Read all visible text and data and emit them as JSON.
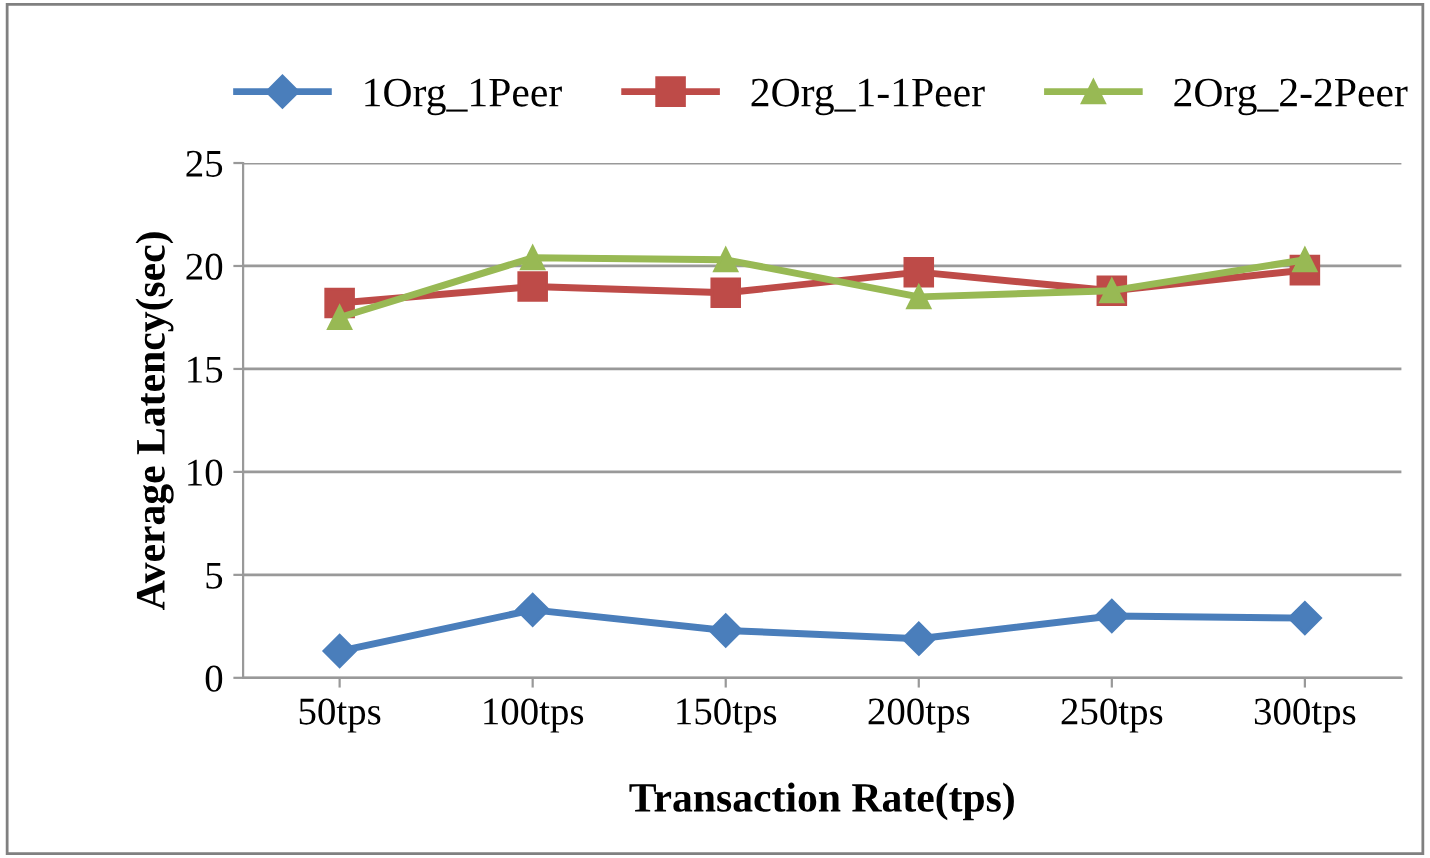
{
  "chart_data": {
    "type": "line",
    "xlabel": "Transaction Rate(tps)",
    "ylabel": "Average Latency(sec)",
    "categories": [
      "50tps",
      "100tps",
      "150tps",
      "200tps",
      "250tps",
      "300tps"
    ],
    "series": [
      {
        "name": "1Org_1Peer",
        "color": "#4a7ebb",
        "marker": "diamond",
        "values": [
          1.3,
          3.3,
          2.3,
          1.9,
          3.0,
          2.9
        ]
      },
      {
        "name": "2Org_1-1Peer",
        "color": "#be4b48",
        "marker": "square",
        "values": [
          18.2,
          19.0,
          18.7,
          19.7,
          18.8,
          19.8
        ]
      },
      {
        "name": "2Org_2-2Peer",
        "color": "#98b954",
        "marker": "triangle",
        "values": [
          17.5,
          20.4,
          20.3,
          18.5,
          18.8,
          20.3
        ]
      }
    ],
    "ylim": [
      0,
      25
    ],
    "yticks": [
      0,
      5,
      10,
      15,
      20,
      25
    ],
    "grid": "y",
    "legend": "top",
    "line_style": "solid"
  }
}
